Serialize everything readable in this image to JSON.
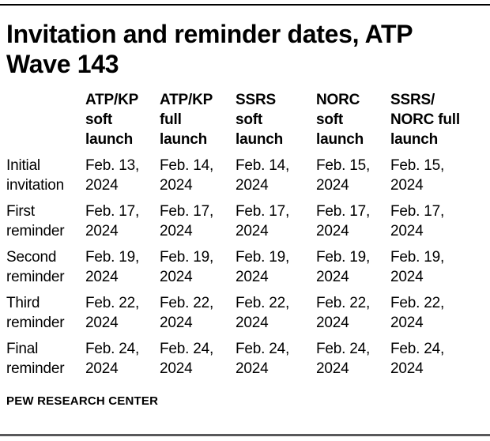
{
  "colors": {
    "background": "#ffffff",
    "text": "#000000",
    "top_rule": "#000000",
    "bottom_rule": "#58585a"
  },
  "header": {
    "title": "Invitation and reminder dates, ATP Wave 143"
  },
  "table": {
    "column_headers": [
      "ATP/KP\nsoft\nlaunch",
      "ATP/KP\nfull\nlaunch",
      "SSRS\nsoft\nlaunch",
      "NORC\nsoft\nlaunch",
      "SSRS/\nNORC full\nlaunch"
    ],
    "rows": [
      {
        "label": "Initial\ninvitation",
        "cells": [
          "Feb. 13,\n2024",
          "Feb. 14,\n2024",
          "Feb. 14,\n2024",
          "Feb. 15,\n2024",
          "Feb. 15,\n2024"
        ]
      },
      {
        "label": "First\nreminder",
        "cells": [
          "Feb. 17,\n2024",
          "Feb. 17,\n2024",
          "Feb. 17,\n2024",
          "Feb. 17,\n2024",
          "Feb. 17,\n2024"
        ]
      },
      {
        "label": "Second\nreminder",
        "cells": [
          "Feb. 19,\n2024",
          "Feb. 19,\n2024",
          "Feb. 19,\n2024",
          "Feb. 19,\n2024",
          "Feb. 19,\n2024"
        ]
      },
      {
        "label": "Third\nreminder",
        "cells": [
          "Feb. 22,\n2024",
          "Feb. 22,\n2024",
          "Feb. 22,\n2024",
          "Feb. 22,\n2024",
          "Feb. 22,\n2024"
        ]
      },
      {
        "label": "Final\nreminder",
        "cells": [
          "Feb. 24,\n2024",
          "Feb. 24,\n2024",
          "Feb. 24,\n2024",
          "Feb. 24,\n2024",
          "Feb. 24,\n2024"
        ]
      }
    ]
  },
  "footer": {
    "source": "PEW RESEARCH CENTER"
  },
  "chart_data": {
    "type": "table",
    "title": "Invitation and reminder dates, ATP Wave 143",
    "columns": [
      "",
      "ATP/KP soft launch",
      "ATP/KP full launch",
      "SSRS soft launch",
      "NORC soft launch",
      "SSRS/NORC full launch"
    ],
    "rows": [
      [
        "Initial invitation",
        "Feb. 13, 2024",
        "Feb. 14, 2024",
        "Feb. 14, 2024",
        "Feb. 15, 2024",
        "Feb. 15, 2024"
      ],
      [
        "First reminder",
        "Feb. 17, 2024",
        "Feb. 17, 2024",
        "Feb. 17, 2024",
        "Feb. 17, 2024",
        "Feb. 17, 2024"
      ],
      [
        "Second reminder",
        "Feb. 19, 2024",
        "Feb. 19, 2024",
        "Feb. 19, 2024",
        "Feb. 19, 2024",
        "Feb. 19, 2024"
      ],
      [
        "Third reminder",
        "Feb. 22, 2024",
        "Feb. 22, 2024",
        "Feb. 22, 2024",
        "Feb. 22, 2024",
        "Feb. 22, 2024"
      ],
      [
        "Final reminder",
        "Feb. 24, 2024",
        "Feb. 24, 2024",
        "Feb. 24, 2024",
        "Feb. 24, 2024",
        "Feb. 24, 2024"
      ]
    ],
    "source": "PEW RESEARCH CENTER",
    "legend": false,
    "grid": false
  }
}
